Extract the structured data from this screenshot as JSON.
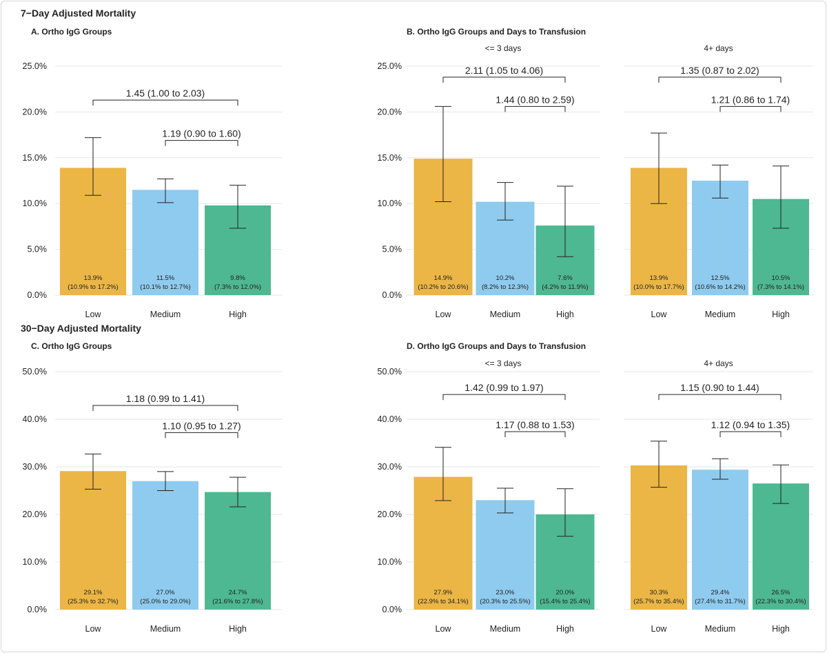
{
  "sections": [
    {
      "title": "7−Day Adjusted Mortality"
    },
    {
      "title": "30−Day Adjusted Mortality"
    }
  ],
  "colors": {
    "Low": "#EBB645",
    "Medium": "#8FCBEF",
    "High": "#4DB892",
    "grid": "#e6e6e6"
  },
  "chart_data": [
    {
      "type": "bar",
      "panel": "A. Ortho IgG Groups",
      "facet": "",
      "section": 0,
      "categories": [
        "Low",
        "Medium",
        "High"
      ],
      "ylim": [
        0,
        25
      ],
      "yticks": [
        0,
        5,
        10,
        15,
        20,
        25
      ],
      "tick_format": "percent",
      "values": [
        13.9,
        11.5,
        9.8
      ],
      "ci_low": [
        10.9,
        10.1,
        7.3
      ],
      "ci_high": [
        17.2,
        12.7,
        12.0
      ],
      "bar_labels": [
        "13.9%",
        "11.5%",
        "9.8%"
      ],
      "bar_ci_labels": [
        "(10.9% to 17.2%)",
        "(10.1% to 12.7%)",
        "(7.3% to 12.0%)"
      ],
      "comparisons": [
        {
          "from": "Low",
          "to": "High",
          "label": "1.45 (1.00 to 2.03)",
          "level": 21.3
        },
        {
          "from": "Medium",
          "to": "High",
          "label": "1.19 (0.90 to 1.60)",
          "level": 16.9
        }
      ]
    },
    {
      "type": "bar",
      "panel": "B. Ortho IgG Groups and Days to Transfusion",
      "facet": "<= 3 days",
      "section": 0,
      "categories": [
        "Low",
        "Medium",
        "High"
      ],
      "ylim": [
        0,
        25
      ],
      "yticks": [
        0,
        5,
        10,
        15,
        20,
        25
      ],
      "tick_format": "percent",
      "values": [
        14.9,
        10.2,
        7.6
      ],
      "ci_low": [
        10.2,
        8.2,
        4.2
      ],
      "ci_high": [
        20.6,
        12.3,
        11.9
      ],
      "bar_labels": [
        "14.9%",
        "10.2%",
        "7.6%"
      ],
      "bar_ci_labels": [
        "(10.2% to 20.6%)",
        "(8.2% to 12.3%)",
        "(4.2% to 11.9%)"
      ],
      "comparisons": [
        {
          "from": "Low",
          "to": "High",
          "label": "2.11 (1.05 to 4.06)",
          "level": 23.8
        },
        {
          "from": "Medium",
          "to": "High",
          "label": "1.44 (0.80 to 2.59)",
          "level": 20.6
        }
      ]
    },
    {
      "type": "bar",
      "panel": "",
      "facet": "4+ days",
      "section": 0,
      "categories": [
        "Low",
        "Medium",
        "High"
      ],
      "ylim": [
        0,
        25
      ],
      "yticks": [
        0,
        5,
        10,
        15,
        20,
        25
      ],
      "tick_format": "percent",
      "values": [
        13.9,
        12.5,
        10.5
      ],
      "ci_low": [
        10.0,
        10.6,
        7.3
      ],
      "ci_high": [
        17.7,
        14.2,
        14.1
      ],
      "bar_labels": [
        "13.9%",
        "12.5%",
        "10.5%"
      ],
      "bar_ci_labels": [
        "(10.0% to 17.7%)",
        "(10.6% to 14.2%)",
        "(7.3% to 14.1%)"
      ],
      "comparisons": [
        {
          "from": "Low",
          "to": "High",
          "label": "1.35 (0.87 to 2.02)",
          "level": 23.8
        },
        {
          "from": "Medium",
          "to": "High",
          "label": "1.21 (0.86 to 1.74)",
          "level": 20.6
        }
      ]
    },
    {
      "type": "bar",
      "panel": "C. Ortho IgG Groups",
      "facet": "",
      "section": 1,
      "categories": [
        "Low",
        "Medium",
        "High"
      ],
      "ylim": [
        0,
        50
      ],
      "yticks": [
        0,
        10,
        20,
        30,
        40,
        50
      ],
      "tick_format": "percent",
      "values": [
        29.1,
        27.0,
        24.7
      ],
      "ci_low": [
        25.3,
        25.0,
        21.6
      ],
      "ci_high": [
        32.7,
        29.0,
        27.8
      ],
      "bar_labels": [
        "29.1%",
        "27.0%",
        "24.7%"
      ],
      "bar_ci_labels": [
        "(25.3% to 32.7%)",
        "(25.0% to 29.0%)",
        "(21.6% to 27.8%)"
      ],
      "comparisons": [
        {
          "from": "Low",
          "to": "High",
          "label": "1.18 (0.99 to 1.41)",
          "level": 42.9
        },
        {
          "from": "Medium",
          "to": "High",
          "label": "1.10 (0.95 to 1.27)",
          "level": 37.2
        }
      ]
    },
    {
      "type": "bar",
      "panel": "D. Ortho IgG Groups and Days to Transfusion",
      "facet": "<= 3 days",
      "section": 1,
      "categories": [
        "Low",
        "Medium",
        "High"
      ],
      "ylim": [
        0,
        50
      ],
      "yticks": [
        0,
        10,
        20,
        30,
        40,
        50
      ],
      "tick_format": "percent",
      "values": [
        27.9,
        23.0,
        20.0
      ],
      "ci_low": [
        22.9,
        20.3,
        15.4
      ],
      "ci_high": [
        34.1,
        25.5,
        25.4
      ],
      "bar_labels": [
        "27.9%",
        "23.0%",
        "20.0%"
      ],
      "bar_ci_labels": [
        "(22.9% to 34.1%)",
        "(20.3% to 25.5%)",
        "(15.4% to 25.4%)"
      ],
      "comparisons": [
        {
          "from": "Low",
          "to": "High",
          "label": "1.42 (0.99 to 1.97)",
          "level": 45.2
        },
        {
          "from": "Medium",
          "to": "High",
          "label": "1.17 (0.88 to 1.53)",
          "level": 37.4
        }
      ]
    },
    {
      "type": "bar",
      "panel": "",
      "facet": "4+ days",
      "section": 1,
      "categories": [
        "Low",
        "Medium",
        "High"
      ],
      "ylim": [
        0,
        50
      ],
      "yticks": [
        0,
        10,
        20,
        30,
        40,
        50
      ],
      "tick_format": "percent",
      "values": [
        30.3,
        29.4,
        26.5
      ],
      "ci_low": [
        25.7,
        27.4,
        22.3
      ],
      "ci_high": [
        35.4,
        31.7,
        30.4
      ],
      "bar_labels": [
        "30.3%",
        "29.4%",
        "26.5%"
      ],
      "bar_ci_labels": [
        "(25.7% to 35.4%)",
        "(27.4% to 31.7%)",
        "(22.3% to 30.4%)"
      ],
      "comparisons": [
        {
          "from": "Low",
          "to": "High",
          "label": "1.15 (0.90 to 1.44)",
          "level": 45.2
        },
        {
          "from": "Medium",
          "to": "High",
          "label": "1.12 (0.94 to 1.35)",
          "level": 37.4
        }
      ]
    }
  ]
}
